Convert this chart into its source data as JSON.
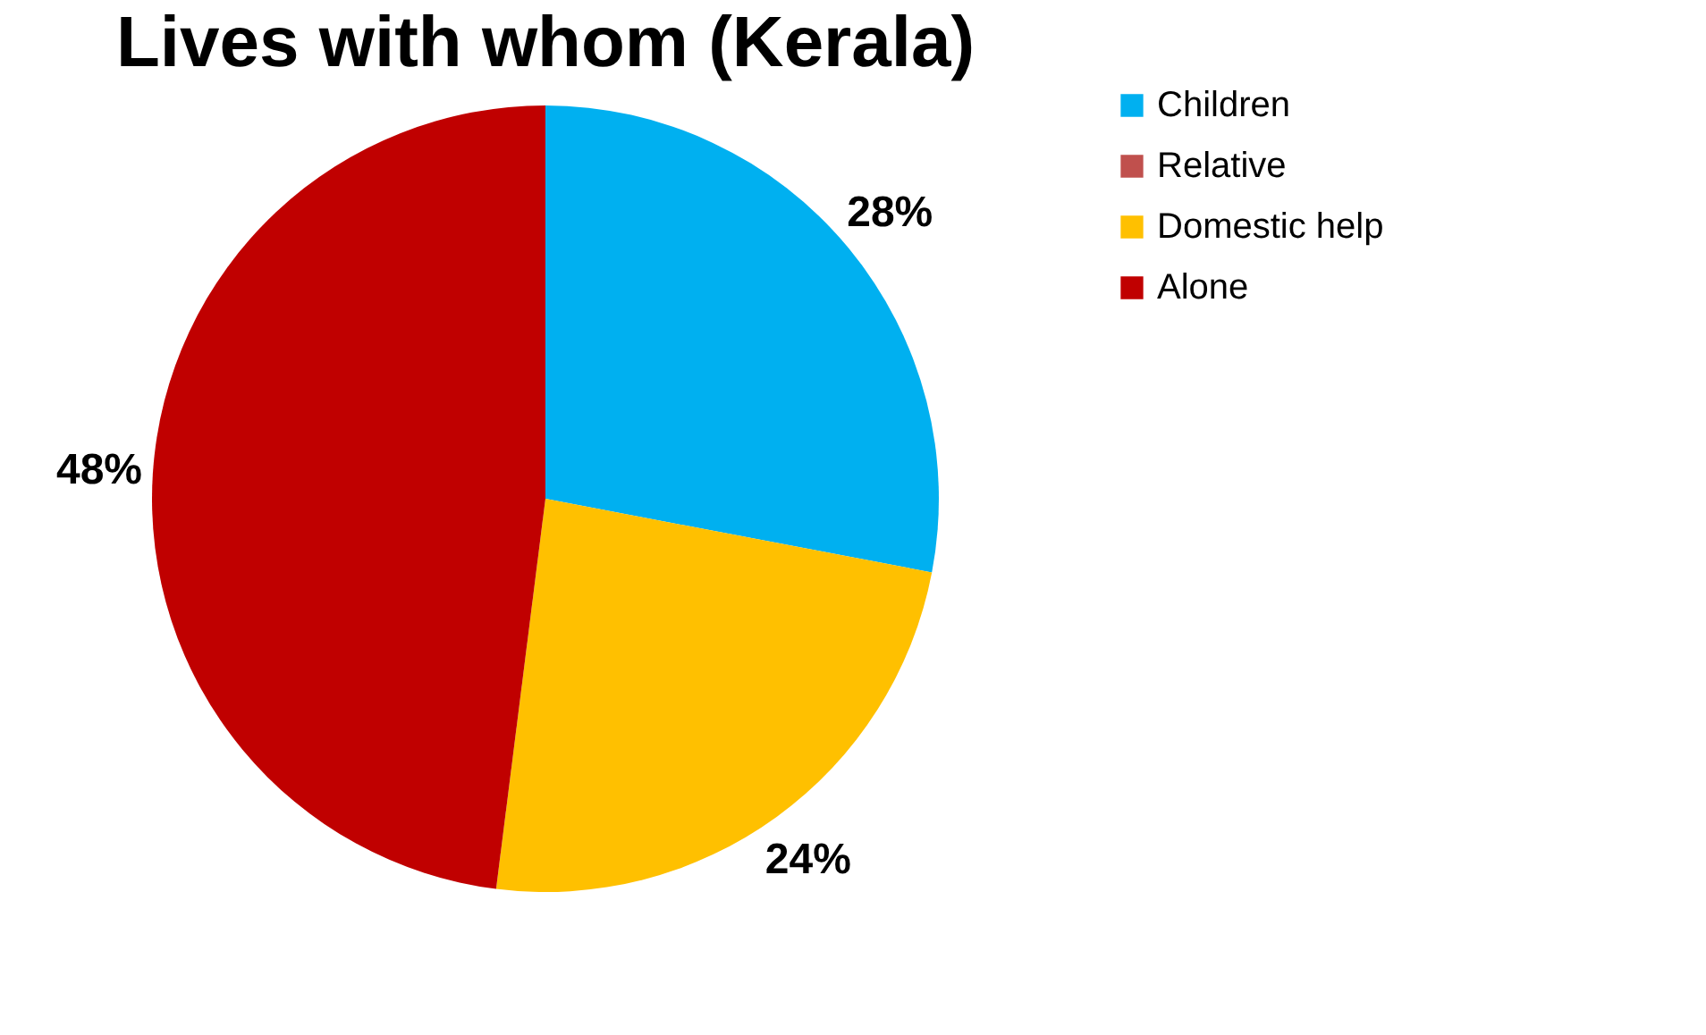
{
  "chart_data": {
    "type": "pie",
    "title": "Lives with whom  (Kerala)",
    "categories": [
      "Children",
      "Relative",
      "Domestic help",
      "Alone"
    ],
    "values": [
      28,
      0,
      24,
      48
    ],
    "colors": [
      "#00b0f0",
      "#c0504d",
      "#ffc000",
      "#c00000"
    ],
    "value_labels": [
      "28%",
      null,
      "24%",
      "48%"
    ],
    "legend": "right"
  }
}
